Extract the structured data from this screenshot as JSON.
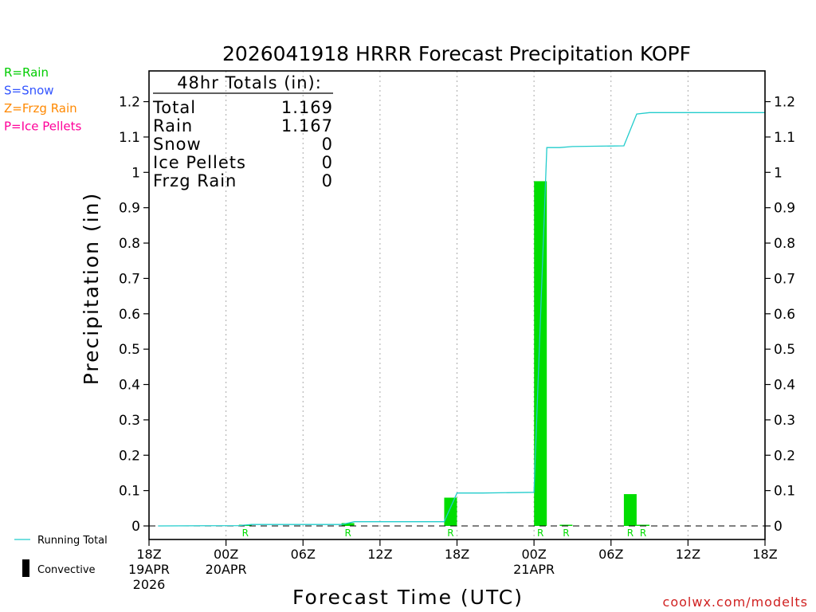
{
  "chart_data": {
    "type": "bar",
    "title": "2026041918 HRRR Forecast Precipitation KOPF",
    "xlabel": "Forecast Time (UTC)",
    "ylabel": "Precipitation (in)",
    "ylim": [
      0,
      1.29
    ],
    "xlim_hours": [
      0,
      48
    ],
    "y_ticks": [
      0,
      0.1,
      0.2,
      0.3,
      0.4,
      0.5,
      0.6,
      0.7,
      0.8,
      0.9,
      1,
      1.1,
      1.2
    ],
    "y_tick_labels": [
      "0",
      "0.1",
      "0.2",
      "0.3",
      "0.4",
      "0.5",
      "0.6",
      "0.7",
      "0.8",
      "0.9",
      "1",
      "1.1",
      "1.2"
    ],
    "x_ticks": [
      {
        "hour": 0,
        "label": "18Z",
        "date": "19APR",
        "year": "2026"
      },
      {
        "hour": 6,
        "label": "00Z",
        "date": "20APR",
        "year": ""
      },
      {
        "hour": 12,
        "label": "06Z",
        "date": "",
        "year": ""
      },
      {
        "hour": 18,
        "label": "12Z",
        "date": "",
        "year": ""
      },
      {
        "hour": 24,
        "label": "18Z",
        "date": "",
        "year": ""
      },
      {
        "hour": 30,
        "label": "00Z",
        "date": "21APR",
        "year": ""
      },
      {
        "hour": 36,
        "label": "06Z",
        "date": "",
        "year": ""
      },
      {
        "hour": 42,
        "label": "12Z",
        "date": "",
        "year": ""
      },
      {
        "hour": 48,
        "label": "18Z",
        "date": "",
        "year": ""
      }
    ],
    "grid": "dotted-vertical",
    "hourly_precip": [
      {
        "hour": 8,
        "value": 0.001,
        "type": "R"
      },
      {
        "hour": 16,
        "value": 0.008,
        "type": "R"
      },
      {
        "hour": 24,
        "value": 0.08,
        "type": "R"
      },
      {
        "hour": 31,
        "value": 0.975,
        "type": "R"
      },
      {
        "hour": 33,
        "value": 0.003,
        "type": "R"
      },
      {
        "hour": 38,
        "value": 0.09,
        "type": "R"
      },
      {
        "hour": 39,
        "value": 0.002,
        "type": "R"
      }
    ],
    "running_total": {
      "name": "Running Total",
      "points": [
        [
          0.7,
          0
        ],
        [
          7,
          0.001
        ],
        [
          8,
          0.004
        ],
        [
          15,
          0.004
        ],
        [
          16,
          0.012
        ],
        [
          23,
          0.012
        ],
        [
          24,
          0.093
        ],
        [
          26,
          0.093
        ],
        [
          30,
          0.095
        ],
        [
          31,
          1.07
        ],
        [
          32,
          1.07
        ],
        [
          33,
          1.073
        ],
        [
          37,
          1.075
        ],
        [
          38,
          1.165
        ],
        [
          39,
          1.169
        ],
        [
          48,
          1.169
        ]
      ]
    },
    "legend": {
      "placement": "left",
      "types": [
        {
          "text": "R=Rain",
          "color": "#00cc00"
        },
        {
          "text": "S=Snow",
          "color": "#3355ff"
        },
        {
          "text": "Z=Frzg Rain",
          "color": "#ff8800"
        },
        {
          "text": "P=Ice Pellets",
          "color": "#ff0099"
        }
      ],
      "running_total_label": "Running Total",
      "convective_label": "Convective"
    },
    "totals": {
      "header": "48hr Totals (in):",
      "rows": [
        {
          "label": "Total",
          "value": "1.169"
        },
        {
          "label": "Rain",
          "value": "1.167"
        },
        {
          "label": "Snow",
          "value": "0"
        },
        {
          "label": "Ice Pellets",
          "value": "0"
        },
        {
          "label": "Frzg Rain",
          "value": "0"
        }
      ]
    },
    "credit": "coolwx.com/modelts",
    "colors": {
      "rain": "#00dd00",
      "running_total": "#22cccc",
      "credit": "#d02020",
      "axis": "#000000",
      "grid": "#aaaaaa"
    }
  }
}
